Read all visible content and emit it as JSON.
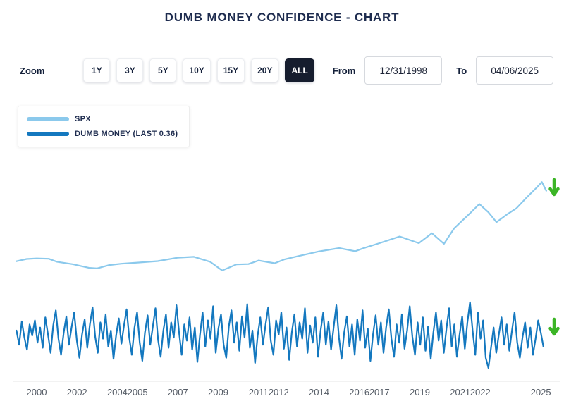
{
  "title": "DUMB MONEY CONFIDENCE - CHART",
  "zoom": {
    "label": "Zoom",
    "options": [
      {
        "label": "1Y",
        "selected": false
      },
      {
        "label": "3Y",
        "selected": false
      },
      {
        "label": "5Y",
        "selected": false
      },
      {
        "label": "10Y",
        "selected": false
      },
      {
        "label": "15Y",
        "selected": false
      },
      {
        "label": "20Y",
        "selected": false
      },
      {
        "label": "ALL",
        "selected": true
      }
    ]
  },
  "range": {
    "from_label": "From",
    "from_value": "12/31/1998",
    "to_label": "To",
    "to_value": "04/06/2025"
  },
  "legend": {
    "items": [
      {
        "label": "SPX",
        "color": "#8bc9ec"
      },
      {
        "label": "DUMB MONEY (LAST 0.36)",
        "color": "#1478bf"
      }
    ]
  },
  "trend_arrows": [
    {
      "series": "SPX",
      "direction": "down",
      "color": "#3cb526"
    },
    {
      "series": "DUMB MONEY",
      "direction": "down",
      "color": "#3cb526"
    }
  ],
  "chart_data": {
    "type": "line",
    "title": "DUMB MONEY CONFIDENCE - CHART",
    "x_range": [
      1998.95,
      2025.45
    ],
    "x_ticks": [
      2000,
      2002,
      2004,
      2005,
      2007,
      2009,
      2011,
      2012,
      2014,
      2016,
      2017,
      2019,
      2021,
      2022,
      2025
    ],
    "grid": false,
    "legend_position": "top-left",
    "series": [
      {
        "name": "SPX",
        "color": "#8bc9ec",
        "width": 2.2,
        "y_range": [
          500,
          6600
        ],
        "band": [
          0.03,
          0.5
        ],
        "x": [
          1999.0,
          1999.5,
          2000.0,
          2000.6,
          2001.0,
          2001.8,
          2002.6,
          2003.0,
          2003.6,
          2004.2,
          2005.0,
          2006.0,
          2007.0,
          2007.8,
          2008.6,
          2009.2,
          2009.9,
          2010.5,
          2011.0,
          2011.8,
          2012.3,
          2013.0,
          2014.0,
          2015.0,
          2015.8,
          2016.2,
          2017.0,
          2018.0,
          2018.95,
          2019.6,
          2020.2,
          2020.7,
          2021.5,
          2021.95,
          2022.4,
          2022.8,
          2023.3,
          2023.8,
          2024.3,
          2024.8,
          2025.05,
          2025.27
        ],
        "values": [
          1280,
          1420,
          1450,
          1430,
          1250,
          1100,
          880,
          850,
          1050,
          1130,
          1200,
          1290,
          1500,
          1550,
          1250,
          720,
          1090,
          1110,
          1330,
          1160,
          1400,
          1600,
          1880,
          2080,
          1890,
          2070,
          2380,
          2780,
          2380,
          2980,
          2340,
          3270,
          4200,
          4750,
          4250,
          3650,
          4100,
          4500,
          5150,
          5750,
          6080,
          5550
        ]
      },
      {
        "name": "DUMB MONEY",
        "last_value": 0.36,
        "color": "#1478bf",
        "width": 2.2,
        "y_range": [
          0.05,
          0.95
        ],
        "band": [
          0.56,
          0.985
        ],
        "x_start": 1999.0,
        "x_step": 0.13,
        "values": [
          0.52,
          0.38,
          0.61,
          0.45,
          0.33,
          0.58,
          0.47,
          0.62,
          0.4,
          0.55,
          0.35,
          0.65,
          0.48,
          0.3,
          0.57,
          0.72,
          0.44,
          0.28,
          0.5,
          0.66,
          0.38,
          0.55,
          0.7,
          0.42,
          0.25,
          0.48,
          0.63,
          0.35,
          0.58,
          0.75,
          0.46,
          0.3,
          0.6,
          0.44,
          0.68,
          0.36,
          0.52,
          0.24,
          0.47,
          0.64,
          0.39,
          0.57,
          0.73,
          0.45,
          0.28,
          0.55,
          0.7,
          0.4,
          0.22,
          0.5,
          0.67,
          0.38,
          0.56,
          0.74,
          0.43,
          0.26,
          0.52,
          0.68,
          0.35,
          0.6,
          0.45,
          0.77,
          0.5,
          0.28,
          0.58,
          0.42,
          0.65,
          0.33,
          0.55,
          0.21,
          0.48,
          0.7,
          0.36,
          0.62,
          0.44,
          0.76,
          0.3,
          0.54,
          0.68,
          0.38,
          0.25,
          0.56,
          0.72,
          0.4,
          0.6,
          0.32,
          0.66,
          0.45,
          0.78,
          0.35,
          0.52,
          0.2,
          0.47,
          0.65,
          0.38,
          0.58,
          0.75,
          0.42,
          0.28,
          0.62,
          0.48,
          0.7,
          0.34,
          0.55,
          0.23,
          0.5,
          0.68,
          0.36,
          0.6,
          0.44,
          0.74,
          0.3,
          0.57,
          0.4,
          0.65,
          0.26,
          0.52,
          0.7,
          0.38,
          0.61,
          0.33,
          0.56,
          0.77,
          0.45,
          0.24,
          0.5,
          0.66,
          0.36,
          0.58,
          0.28,
          0.63,
          0.42,
          0.72,
          0.35,
          0.54,
          0.22,
          0.48,
          0.67,
          0.38,
          0.6,
          0.3,
          0.55,
          0.73,
          0.44,
          0.26,
          0.58,
          0.4,
          0.68,
          0.34,
          0.52,
          0.76,
          0.46,
          0.28,
          0.6,
          0.38,
          0.65,
          0.32,
          0.56,
          0.24,
          0.5,
          0.7,
          0.42,
          0.62,
          0.3,
          0.54,
          0.74,
          0.36,
          0.58,
          0.26,
          0.48,
          0.66,
          0.34,
          0.6,
          0.8,
          0.52,
          0.28,
          0.7,
          0.44,
          0.62,
          0.25,
          0.15,
          0.35,
          0.55,
          0.3,
          0.48,
          0.65,
          0.38,
          0.58,
          0.32,
          0.52,
          0.7,
          0.4,
          0.25,
          0.45,
          0.6,
          0.35,
          0.55,
          0.28,
          0.44,
          0.62,
          0.5,
          0.36
        ]
      }
    ]
  }
}
